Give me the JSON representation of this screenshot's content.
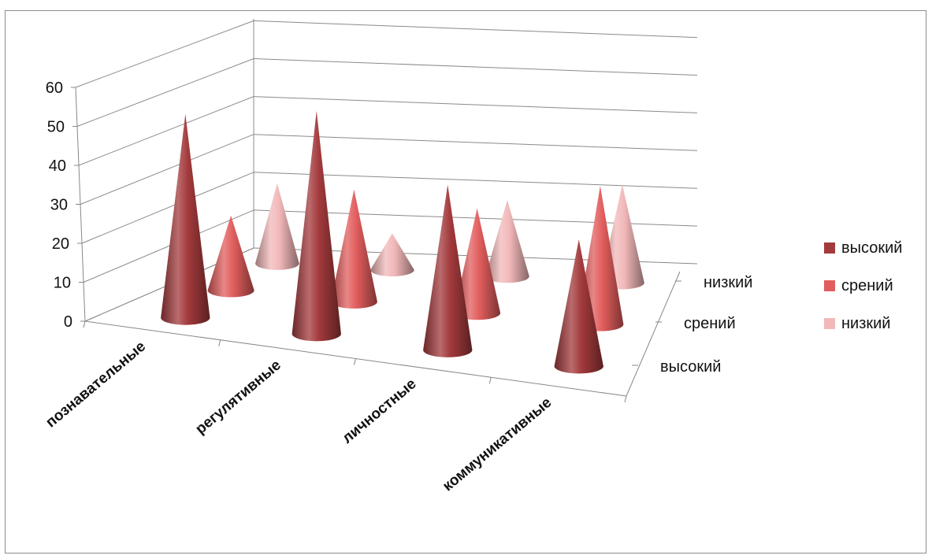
{
  "chart_data": {
    "type": "bar",
    "subtype": "3d-cone",
    "categories": [
      "познавательные",
      "регулятивные",
      "личностные",
      "коммуникативные"
    ],
    "series": [
      {
        "name": "высокий",
        "values": [
          53,
          58,
          43,
          33
        ],
        "color": "#a33a3c"
      },
      {
        "name": "срений",
        "values": [
          20,
          30,
          28,
          37
        ],
        "color": "#e25d5d"
      },
      {
        "name": "низкий",
        "values": [
          22,
          10,
          21,
          27
        ],
        "color": "#f2b8b9"
      }
    ],
    "depth_labels": [
      "низкий",
      "срений",
      "высокий"
    ],
    "y_ticks": [
      "0",
      "10",
      "20",
      "30",
      "40",
      "50",
      "60"
    ],
    "ylim": [
      0,
      60
    ],
    "legend_position": "right",
    "grid": true
  }
}
